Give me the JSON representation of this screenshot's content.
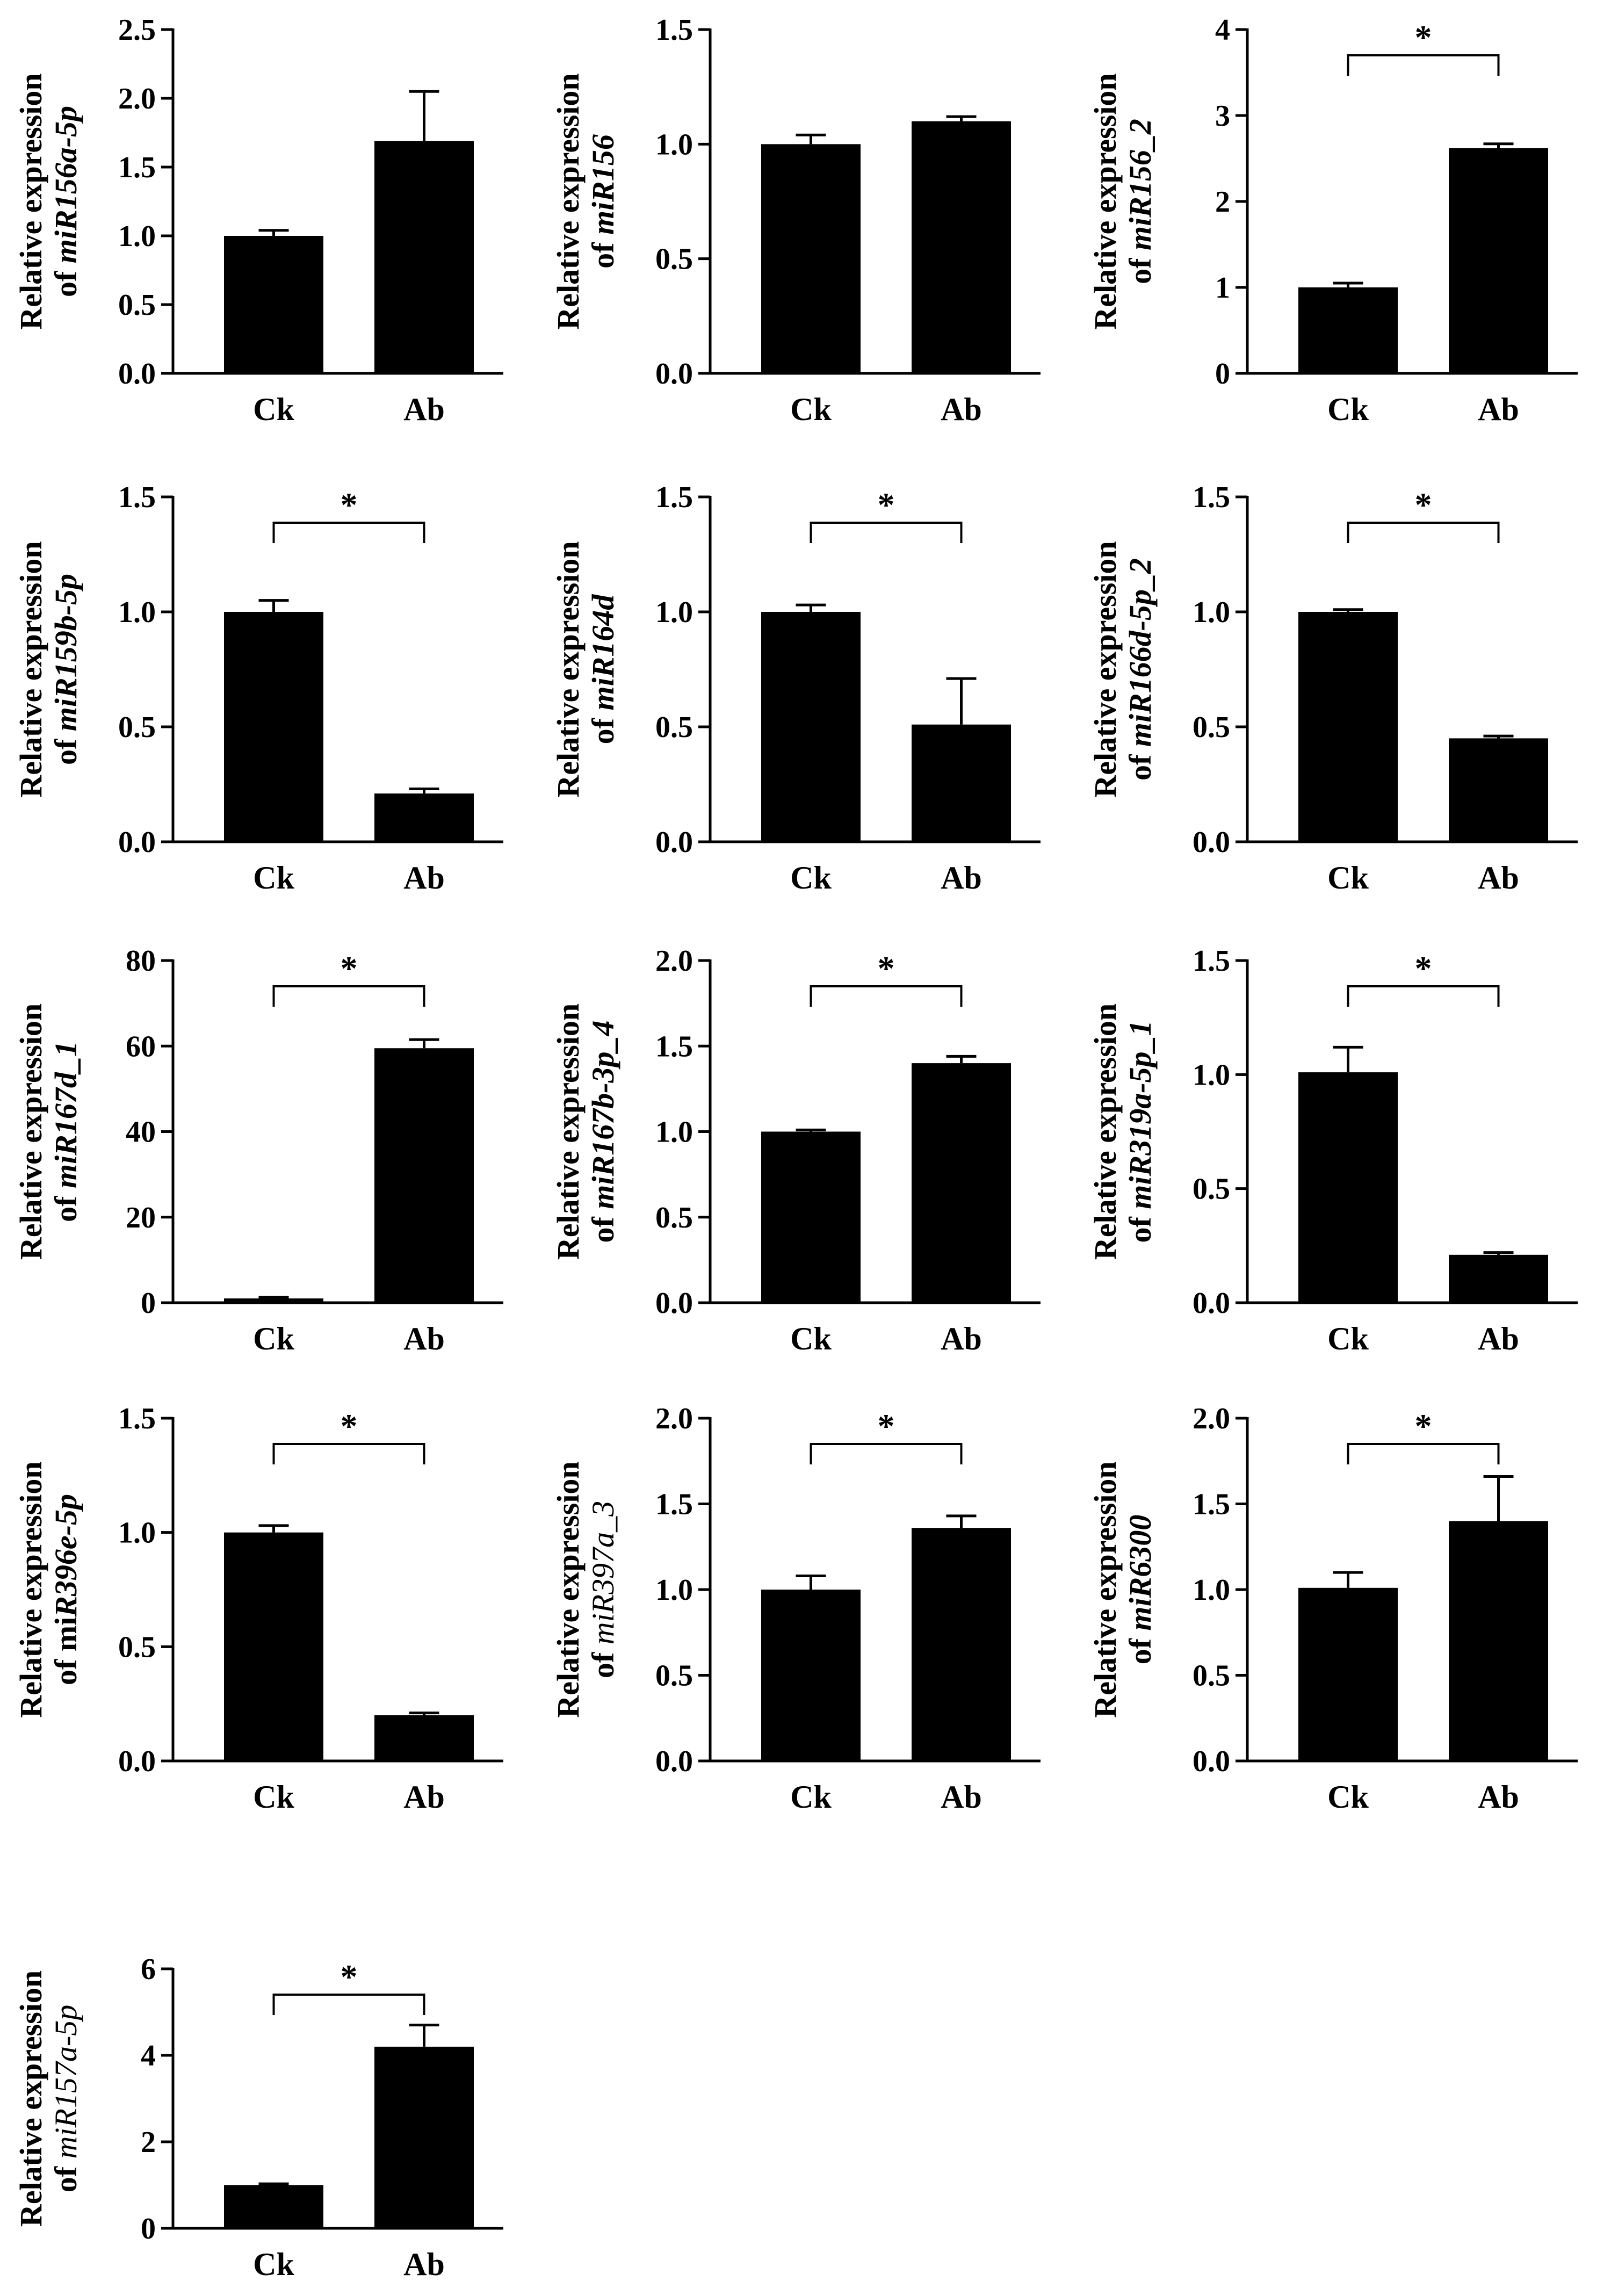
{
  "chart_data": [
    {
      "type": "bar",
      "id": "miR156a-5p",
      "ylabel_prefix": "Relative expression",
      "ylabel_of": "of ",
      "ylabel_gene": "miR156a-5p",
      "gene_italic": true,
      "gene_bold": true,
      "categories": [
        "Ck",
        "Ab"
      ],
      "values": [
        1.0,
        1.69
      ],
      "errors": [
        0.04,
        0.36
      ],
      "ylim": [
        0,
        2.5
      ],
      "yticks": [
        "0.0",
        "0.5",
        "1.0",
        "1.5",
        "2.0",
        "2.5"
      ],
      "significance": ""
    },
    {
      "type": "bar",
      "id": "miR156",
      "ylabel_prefix": "Relative expression",
      "ylabel_of": "of ",
      "ylabel_gene": "miR156",
      "gene_italic": true,
      "gene_bold": true,
      "categories": [
        "Ck",
        "Ab"
      ],
      "values": [
        1.0,
        1.1
      ],
      "errors": [
        0.04,
        0.02
      ],
      "ylim": [
        0,
        1.5
      ],
      "yticks": [
        "0.0",
        "0.5",
        "1.0",
        "1.5"
      ],
      "significance": ""
    },
    {
      "type": "bar",
      "id": "miR156_2",
      "ylabel_prefix": "Relative expression",
      "ylabel_of": "of ",
      "ylabel_gene": "miR156_2",
      "gene_italic": true,
      "gene_bold": true,
      "categories": [
        "Ck",
        "Ab"
      ],
      "values": [
        1.0,
        2.62
      ],
      "errors": [
        0.05,
        0.05
      ],
      "ylim": [
        0,
        4
      ],
      "yticks": [
        "0",
        "1",
        "2",
        "3",
        "4"
      ],
      "significance": "*"
    },
    {
      "type": "bar",
      "id": "miR159b-5p",
      "ylabel_prefix": "Relative expression",
      "ylabel_of": "of ",
      "ylabel_gene": "miR159b-5p",
      "gene_italic": true,
      "gene_bold": true,
      "categories": [
        "Ck",
        "Ab"
      ],
      "values": [
        1.0,
        0.21
      ],
      "errors": [
        0.05,
        0.02
      ],
      "ylim": [
        0,
        1.5
      ],
      "yticks": [
        "0.0",
        "0.5",
        "1.0",
        "1.5"
      ],
      "significance": "*"
    },
    {
      "type": "bar",
      "id": "miR164d",
      "ylabel_prefix": "Relative expression",
      "ylabel_of": "of ",
      "ylabel_gene": "miR164d",
      "gene_italic": true,
      "gene_bold": true,
      "categories": [
        "Ck",
        "Ab"
      ],
      "values": [
        1.0,
        0.51
      ],
      "errors": [
        0.03,
        0.2
      ],
      "ylim": [
        0,
        1.5
      ],
      "yticks": [
        "0.0",
        "0.5",
        "1.0",
        "1.5"
      ],
      "significance": "*"
    },
    {
      "type": "bar",
      "id": "miR166d-5p_2",
      "ylabel_prefix": "Relative expression",
      "ylabel_of": "of ",
      "ylabel_gene": "miR166d-5p_2",
      "gene_italic": true,
      "gene_bold": true,
      "categories": [
        "Ck",
        "Ab"
      ],
      "values": [
        1.0,
        0.45
      ],
      "errors": [
        0.01,
        0.01
      ],
      "ylim": [
        0,
        1.5
      ],
      "yticks": [
        "0.0",
        "0.5",
        "1.0",
        "1.5"
      ],
      "significance": "*"
    },
    {
      "type": "bar",
      "id": "miR167d_1",
      "ylabel_prefix": "Relative expression",
      "ylabel_of": "of ",
      "ylabel_gene": "miR167d_1",
      "gene_italic": true,
      "gene_bold": true,
      "categories": [
        "Ck",
        "Ab"
      ],
      "values": [
        1.0,
        59.5
      ],
      "errors": [
        0.3,
        2.0
      ],
      "ylim": [
        0,
        80
      ],
      "yticks": [
        "0",
        "20",
        "40",
        "60",
        "80"
      ],
      "significance": "*"
    },
    {
      "type": "bar",
      "id": "miR167b-3p_4",
      "ylabel_prefix": "Relative expression",
      "ylabel_of": "of ",
      "ylabel_gene": "miR167b-3p_4",
      "gene_italic": true,
      "gene_bold": true,
      "categories": [
        "Ck",
        "Ab"
      ],
      "values": [
        1.0,
        1.4
      ],
      "errors": [
        0.01,
        0.04
      ],
      "ylim": [
        0,
        2.0
      ],
      "yticks": [
        "0.0",
        "0.5",
        "1.0",
        "1.5",
        "2.0"
      ],
      "significance": "*"
    },
    {
      "type": "bar",
      "id": "miR319a-5p_1",
      "ylabel_prefix": "Relative expression",
      "ylabel_of": "of ",
      "ylabel_gene": "miR319a-5p_1",
      "gene_italic": true,
      "gene_bold": true,
      "categories": [
        "Ck",
        "Ab"
      ],
      "values": [
        1.01,
        0.21
      ],
      "errors": [
        0.11,
        0.01
      ],
      "ylim": [
        0,
        1.5
      ],
      "yticks": [
        "0.0",
        "0.5",
        "1.0",
        "1.5"
      ],
      "significance": "*"
    },
    {
      "type": "bar",
      "id": "miR396e-5p",
      "ylabel_prefix": "Relative expression",
      "ylabel_of": "of mi",
      "ylabel_gene": "R396e-5p",
      "gene_italic": true,
      "gene_bold": true,
      "categories": [
        "Ck",
        "Ab"
      ],
      "values": [
        1.0,
        0.2
      ],
      "errors": [
        0.03,
        0.01
      ],
      "ylim": [
        0,
        1.5
      ],
      "yticks": [
        "0.0",
        "0.5",
        "1.0",
        "1.5"
      ],
      "significance": "*"
    },
    {
      "type": "bar",
      "id": "miR397a_3",
      "ylabel_prefix": "Relative expression",
      "ylabel_of": "of ",
      "ylabel_gene": "miR397a_3",
      "gene_italic": true,
      "gene_bold": false,
      "categories": [
        "Ck",
        "Ab"
      ],
      "values": [
        1.0,
        1.36
      ],
      "errors": [
        0.08,
        0.07
      ],
      "ylim": [
        0,
        2.0
      ],
      "yticks": [
        "0.0",
        "0.5",
        "1.0",
        "1.5",
        "2.0"
      ],
      "significance": "*"
    },
    {
      "type": "bar",
      "id": "miR6300",
      "ylabel_prefix": "Relative expression",
      "ylabel_of": "of ",
      "ylabel_gene": "miR6300",
      "gene_italic": true,
      "gene_bold": true,
      "categories": [
        "Ck",
        "Ab"
      ],
      "values": [
        1.01,
        1.4
      ],
      "errors": [
        0.09,
        0.26
      ],
      "ylim": [
        0,
        2.0
      ],
      "yticks": [
        "0.0",
        "0.5",
        "1.0",
        "1.5",
        "2.0"
      ],
      "significance": "*"
    },
    {
      "type": "bar",
      "id": "miR157a-5p",
      "ylabel_prefix": "Relative expression",
      "ylabel_of": "of ",
      "ylabel_gene": "miR157a-5p",
      "gene_italic": true,
      "gene_bold": false,
      "categories": [
        "Ck",
        "Ab"
      ],
      "values": [
        1.0,
        4.2
      ],
      "errors": [
        0.03,
        0.5
      ],
      "ylim": [
        0,
        6
      ],
      "yticks": [
        "0",
        "2",
        "4",
        "6"
      ],
      "significance": "*"
    }
  ]
}
